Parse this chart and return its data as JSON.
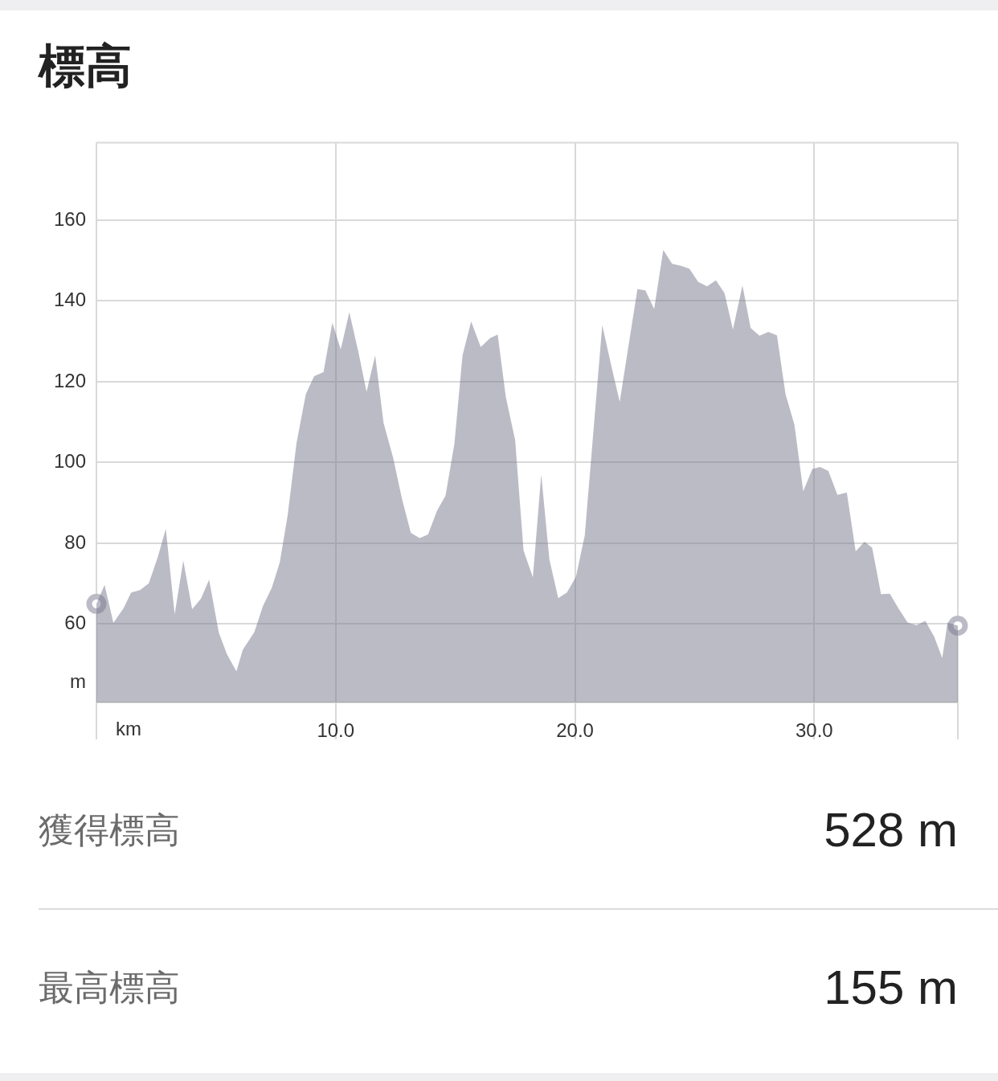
{
  "chart_data": [
    {
      "type": "area",
      "title": "標高",
      "xlabel": "km",
      "ylabel": "m",
      "xlim": [
        0,
        36.0
      ],
      "xticks": [
        {
          "value": 0,
          "label": null
        },
        {
          "value": 10,
          "label": "10.0"
        },
        {
          "value": 20,
          "label": "20.0"
        },
        {
          "value": 30,
          "label": "30.0"
        },
        {
          "value": 36.0,
          "label": null
        }
      ],
      "ylim": [
        40.6,
        179.2
      ],
      "yticks": [
        60,
        80,
        100,
        120,
        140,
        160
      ],
      "grid": true,
      "series": [
        {
          "type": "area",
          "color": "#bbbbc6",
          "x": [
            0,
            0.34,
            0.71,
            1.13,
            1.45,
            1.82,
            2.19,
            2.56,
            2.9,
            3.27,
            3.63,
            4.0,
            4.37,
            4.71,
            5.11,
            5.45,
            5.85,
            6.12,
            6.6,
            6.96,
            7.33,
            7.66,
            7.99,
            8.36,
            8.75,
            9.1,
            9.49,
            9.86,
            10.21,
            10.57,
            10.95,
            11.29,
            11.65,
            12.0,
            12.4,
            12.77,
            13.14,
            13.51,
            13.86,
            14.23,
            14.59,
            14.96,
            15.3,
            15.66,
            16.06,
            16.45,
            16.77,
            17.11,
            17.5,
            17.85,
            18.24,
            18.59,
            18.93,
            19.3,
            19.66,
            20.04,
            20.41,
            20.8,
            21.14,
            21.5,
            21.87,
            22.24,
            22.61,
            22.94,
            23.31,
            23.69,
            24.06,
            24.43,
            24.78,
            25.15,
            25.52,
            25.89,
            26.25,
            26.6,
            27.0,
            27.34,
            27.71,
            28.08,
            28.44,
            28.8,
            29.17,
            29.54,
            29.92,
            30.24,
            30.59,
            30.97,
            31.36,
            31.73,
            32.1,
            32.42,
            32.79,
            33.16,
            33.53,
            33.9,
            34.27,
            34.64,
            35.01,
            35.35,
            35.57,
            36.0
          ],
          "values": [
            65.0,
            69.7,
            60.3,
            63.9,
            67.8,
            68.4,
            70.1,
            76.5,
            83.6,
            62.4,
            75.7,
            63.7,
            66.3,
            71.0,
            58.0,
            52.6,
            48.3,
            53.7,
            58.0,
            64.5,
            69.0,
            75.2,
            86.8,
            104.7,
            116.9,
            121.4,
            122.4,
            134.6,
            128.0,
            137.2,
            127.3,
            117.5,
            126.5,
            109.8,
            101.2,
            91.0,
            82.6,
            81.3,
            82.2,
            88.0,
            91.8,
            104.6,
            126.5,
            134.9,
            128.6,
            130.8,
            131.7,
            116.2,
            105.5,
            78.2,
            71.6,
            97.0,
            76.0,
            66.4,
            67.8,
            71.7,
            82.0,
            109.8,
            134.0,
            124.4,
            115.0,
            129.0,
            142.9,
            142.6,
            138.0,
            152.6,
            149.2,
            148.7,
            148.0,
            144.7,
            143.6,
            145.1,
            141.9,
            132.9,
            143.8,
            133.3,
            131.4,
            132.3,
            131.5,
            116.9,
            109.4,
            92.9,
            98.4,
            98.9,
            97.9,
            92.0,
            92.6,
            78.0,
            80.4,
            78.9,
            67.4,
            67.5,
            63.8,
            60.4,
            59.7,
            60.8,
            56.9,
            51.6,
            60.4,
            59.6
          ]
        },
        {
          "type": "scatter",
          "color": "#bbbbc6",
          "marker": "circle",
          "x": [
            0,
            36.0
          ],
          "values": [
            65.0,
            59.6
          ]
        }
      ]
    },
    {
      "type": "other",
      "annotations": [
        "獲得標高",
        "528 m",
        "最高標高",
        "155 m"
      ]
    }
  ]
}
